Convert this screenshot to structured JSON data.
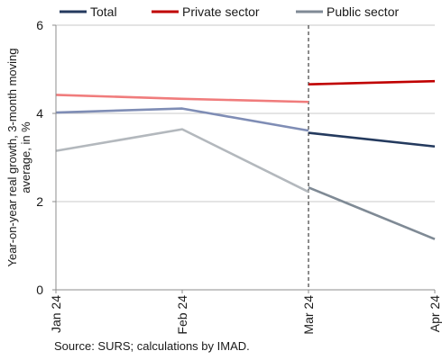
{
  "chart_data": {
    "type": "line",
    "categories": [
      "Jan 24",
      "Feb 24",
      "Mar 24",
      "Apr 24"
    ],
    "ylabel_lines": [
      "Year-on-year real growth, 3-month moving",
      "average, in %"
    ],
    "ylim": [
      0,
      6
    ],
    "yticks": [
      0,
      2,
      4,
      6
    ],
    "grid": true,
    "legend_position": "top",
    "forecast_start": "Mar 24",
    "series": [
      {
        "name": "Total",
        "color": "#243a5e",
        "light_color": "#7f8db5",
        "values": [
          4.02,
          4.11,
          3.61,
          3.25
        ]
      },
      {
        "name": "Private sector",
        "color": "#c00000",
        "light_color": "#f07c7c",
        "values": [
          4.42,
          4.33,
          4.26,
          4.73
        ]
      },
      {
        "name": "Public sector",
        "color": "#7f8a95",
        "light_color": "#b3b8bd",
        "values": [
          3.15,
          3.64,
          2.22,
          1.15
        ]
      }
    ],
    "split_values": {
      "Total": 3.56,
      "Private sector": 4.66,
      "Public sector": 2.32
    }
  },
  "source": "Source: SURS; calculations by IMAD."
}
